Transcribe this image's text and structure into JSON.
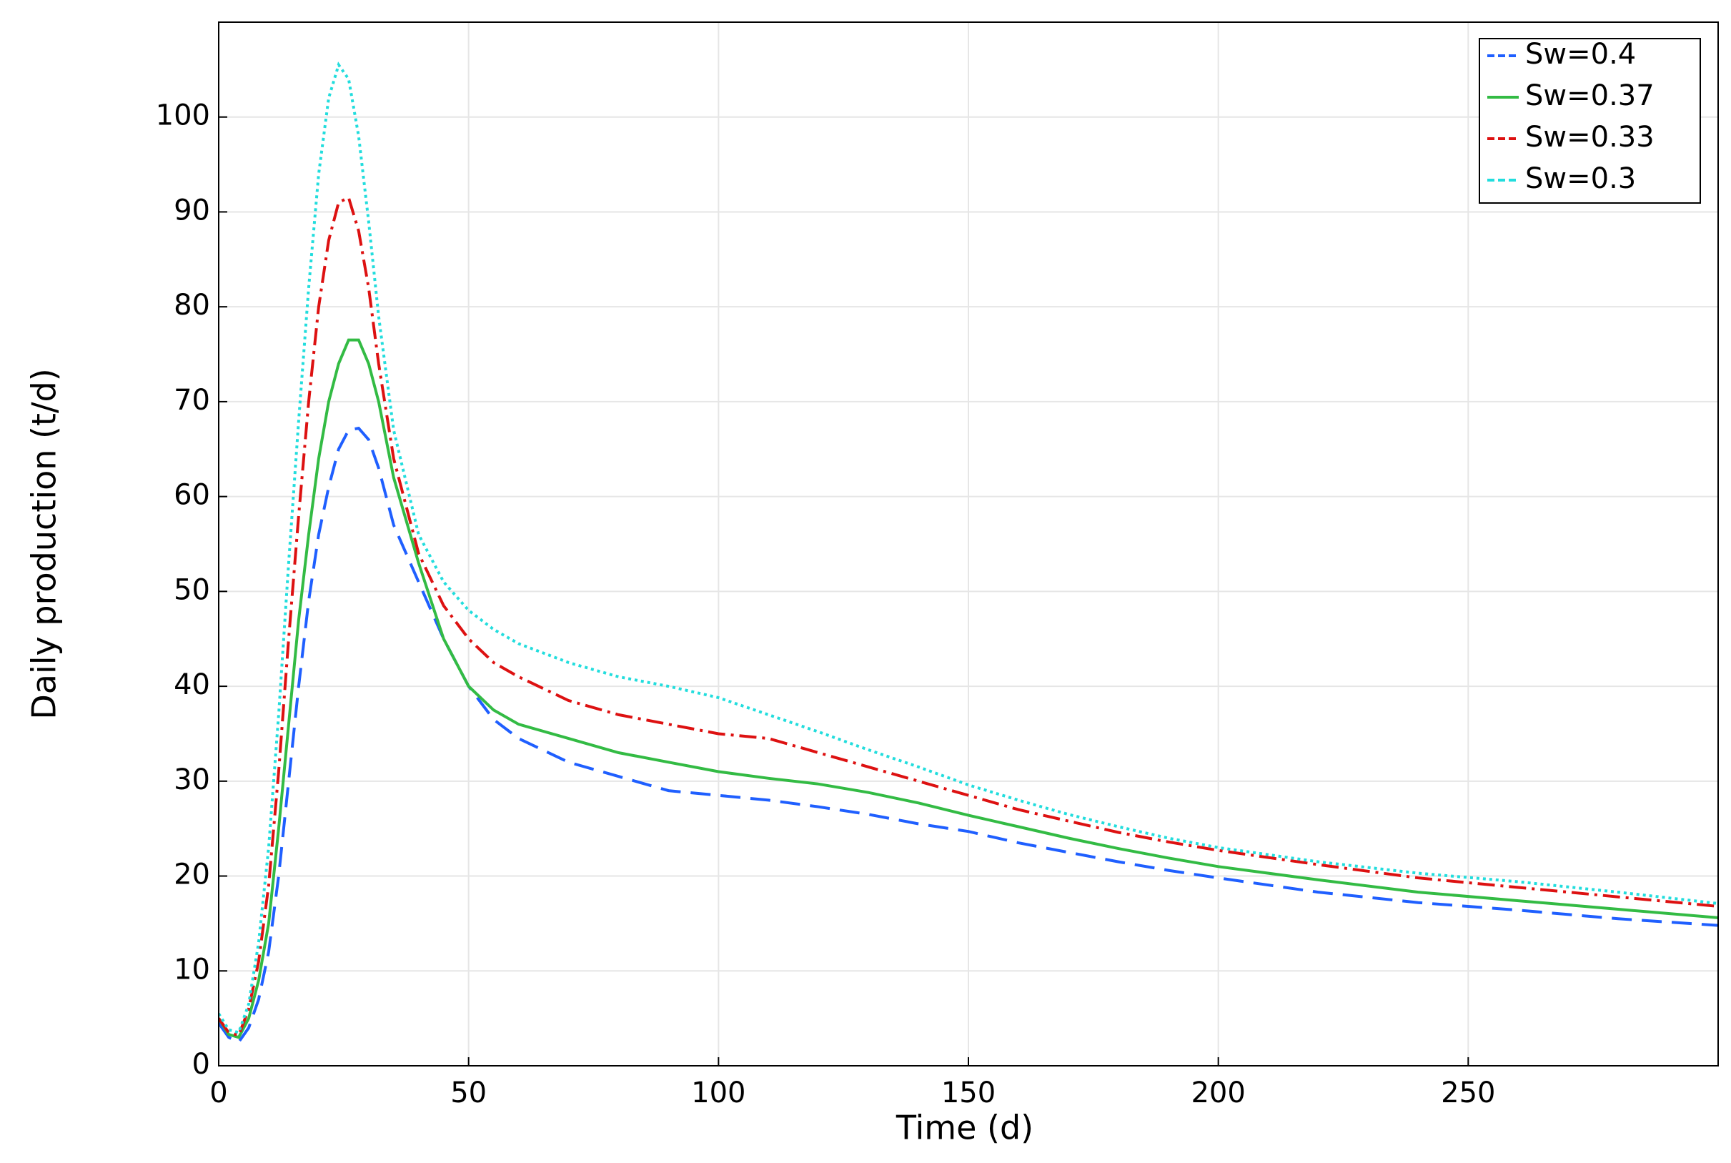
{
  "chart_data": {
    "type": "line",
    "xlabel": "Time (d)",
    "ylabel": "Daily production (t/d)",
    "x": [
      0,
      2,
      4,
      6,
      8,
      10,
      12,
      14,
      16,
      18,
      20,
      22,
      24,
      26,
      28,
      30,
      32,
      35,
      40,
      45,
      50,
      55,
      60,
      70,
      80,
      90,
      100,
      110,
      120,
      130,
      140,
      150,
      160,
      170,
      180,
      190,
      200,
      220,
      240,
      260,
      280,
      300
    ],
    "series": [
      {
        "name": "Sw=0.4",
        "color": "#1f5fff",
        "dash": "dashed",
        "values": [
          4.5,
          3,
          2.5,
          4,
          7,
          12,
          20,
          30,
          40,
          49,
          56,
          61,
          65,
          67,
          67.2,
          66,
          63,
          57,
          51,
          45,
          40,
          36.5,
          34.5,
          32,
          30.5,
          29,
          28.5,
          28,
          27.3,
          26.5,
          25.5,
          24.7,
          23.5,
          22.5,
          21.5,
          20.6,
          19.8,
          18.3,
          17.2,
          16.4,
          15.5,
          14.8
        ]
      },
      {
        "name": "Sw=0.37",
        "color": "#33bb44",
        "dash": "solid",
        "values": [
          5,
          3.3,
          3,
          5,
          9,
          15,
          25,
          36,
          47,
          56,
          64,
          70,
          74,
          76.5,
          76.5,
          74,
          70,
          62,
          53,
          45,
          40,
          37.5,
          36,
          34.5,
          33,
          32,
          31,
          30.3,
          29.7,
          28.8,
          27.7,
          26.4,
          25.2,
          24,
          22.9,
          21.9,
          21,
          19.6,
          18.3,
          17.4,
          16.5,
          15.6
        ]
      },
      {
        "name": "Sw=0.33",
        "color": "#dd1111",
        "dash": "dashdot",
        "values": [
          5,
          3.5,
          3.2,
          6,
          11,
          19,
          31,
          45,
          58,
          70,
          80,
          87,
          91,
          91.5,
          88,
          82,
          74,
          64,
          54,
          48.5,
          45,
          42.5,
          41,
          38.5,
          37,
          36,
          35,
          34.5,
          33,
          31.5,
          30,
          28.5,
          27,
          25.8,
          24.6,
          23.6,
          22.7,
          21.2,
          19.8,
          18.8,
          17.8,
          16.8
        ]
      },
      {
        "name": "Sw=0.3",
        "color": "#22dddd",
        "dash": "dotted",
        "values": [
          5.5,
          3.8,
          3.5,
          6.5,
          13,
          23,
          37,
          53,
          68,
          82,
          94,
          102,
          105.5,
          104,
          98,
          89,
          79,
          67,
          56,
          51,
          48,
          46,
          44.5,
          42.5,
          41,
          40,
          38.8,
          37,
          35.2,
          33.3,
          31.5,
          29.6,
          28,
          26.5,
          25.2,
          24,
          23,
          21.5,
          20.3,
          19.4,
          18.3,
          17.1
        ]
      }
    ],
    "xlim": [
      0,
      300
    ],
    "ylim": [
      0,
      110
    ],
    "xticks": [
      0,
      50,
      100,
      150,
      200,
      250
    ],
    "yticks": [
      0,
      10,
      20,
      30,
      40,
      50,
      60,
      70,
      80,
      90,
      100
    ],
    "grid": true,
    "legend": "upper right"
  }
}
